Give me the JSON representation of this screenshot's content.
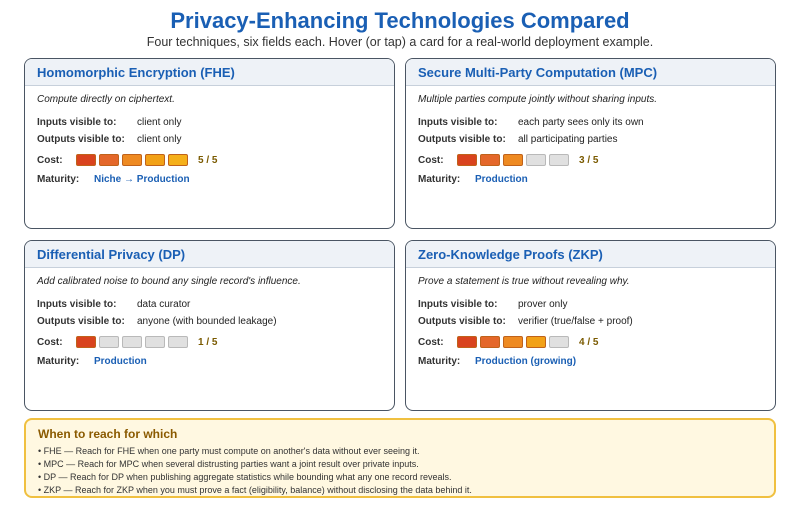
{
  "header": {
    "title": "Privacy-Enhancing Technologies Compared",
    "subtitle": "Four techniques, six fields each. Hover (or tap) a card for a real-world deployment example."
  },
  "labels": {
    "inputs": "Inputs visible to:",
    "outputs": "Outputs visible to:",
    "cost": "Cost:",
    "maturity": "Maturity:"
  },
  "cost_colors": [
    "#d9431e",
    "#e4672a",
    "#ee8a22",
    "#f2a117",
    "#f5b01a"
  ],
  "cards": [
    {
      "title": "Homomorphic Encryption (FHE)",
      "tagline": "Compute directly on ciphertext.",
      "inputs": "client only",
      "outputs": "client only",
      "cost": 5,
      "cost_text": "5 / 5",
      "maturity": "Niche → Production"
    },
    {
      "title": "Secure Multi-Party Computation (MPC)",
      "tagline": "Multiple parties compute jointly without sharing inputs.",
      "inputs": "each party sees only its own",
      "outputs": "all participating parties",
      "cost": 3,
      "cost_text": "3 / 5",
      "maturity": "Production"
    },
    {
      "title": "Differential Privacy (DP)",
      "tagline": "Add calibrated noise to bound any single record's influence.",
      "inputs": "data curator",
      "outputs": "anyone (with bounded leakage)",
      "cost": 1,
      "cost_text": "1 / 5",
      "maturity": "Production"
    },
    {
      "title": "Zero-Knowledge Proofs (ZKP)",
      "tagline": "Prove a statement is true without revealing why.",
      "inputs": "prover only",
      "outputs": "verifier (true/false + proof)",
      "cost": 4,
      "cost_text": "4 / 5",
      "maturity": "Production (growing)"
    }
  ],
  "guide": {
    "title": "When to reach for which",
    "items": [
      "• FHE — Reach for FHE when one party must compute on another's data without ever seeing it.",
      "• MPC — Reach for MPC when several distrusting parties want a joint result over private inputs.",
      "• DP — Reach for DP when publishing aggregate statistics while bounding what any one record reveals.",
      "• ZKP — Reach for ZKP when you must prove a fact (eligibility, balance) without disclosing the data behind it."
    ]
  }
}
